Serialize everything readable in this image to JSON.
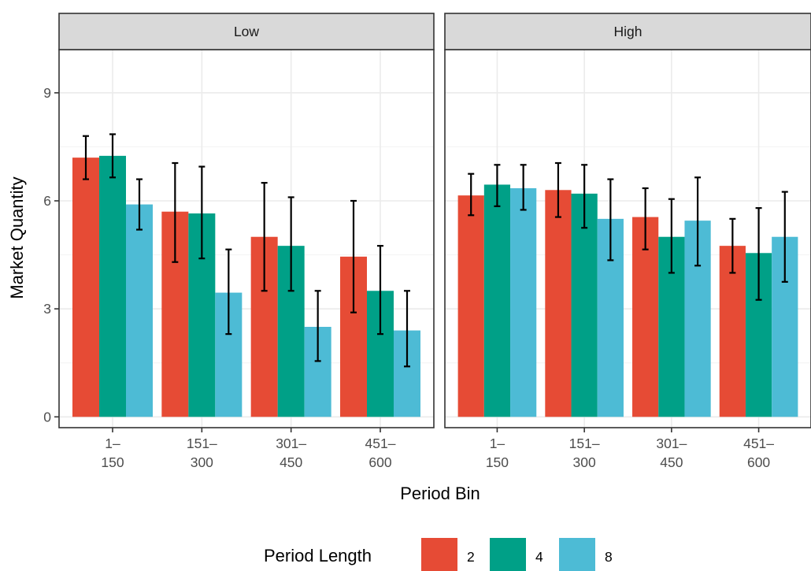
{
  "chart_data": {
    "type": "bar",
    "xlabel": "Period Bin",
    "ylabel": "Market Quantity",
    "ylim": [
      -0.3,
      10.2
    ],
    "yticks": [
      0,
      3,
      6,
      9
    ],
    "categories": [
      {
        "line1": "1–",
        "line2": "150"
      },
      {
        "line1": "151–",
        "line2": "300"
      },
      {
        "line1": "301–",
        "line2": "450"
      },
      {
        "line1": "451–",
        "line2": "600"
      }
    ],
    "grid": true,
    "legend": {
      "title": "Period Length",
      "position": "bottom",
      "items": [
        {
          "label": "2",
          "color": "#E64B35"
        },
        {
          "label": "4",
          "color": "#00A087"
        },
        {
          "label": "8",
          "color": "#4DBBD5"
        }
      ]
    },
    "panels": [
      {
        "label": "Low",
        "series": [
          {
            "name": "2",
            "values": [
              7.2,
              5.7,
              5.0,
              4.45
            ],
            "ci_low": [
              6.6,
              4.3,
              3.5,
              2.9
            ],
            "ci_high": [
              7.8,
              7.05,
              6.5,
              6.0
            ]
          },
          {
            "name": "4",
            "values": [
              7.25,
              5.65,
              4.75,
              3.5
            ],
            "ci_low": [
              6.65,
              4.4,
              3.5,
              2.3
            ],
            "ci_high": [
              7.85,
              6.95,
              6.1,
              4.75
            ]
          },
          {
            "name": "8",
            "values": [
              5.9,
              3.45,
              2.5,
              2.4
            ],
            "ci_low": [
              5.2,
              2.3,
              1.55,
              1.4
            ],
            "ci_high": [
              6.6,
              4.65,
              3.5,
              3.5
            ]
          }
        ]
      },
      {
        "label": "High",
        "series": [
          {
            "name": "2",
            "values": [
              6.15,
              6.3,
              5.55,
              4.75
            ],
            "ci_low": [
              5.6,
              5.55,
              4.65,
              4.0
            ],
            "ci_high": [
              6.75,
              7.05,
              6.35,
              5.5
            ]
          },
          {
            "name": "4",
            "values": [
              6.45,
              6.2,
              5.0,
              4.55
            ],
            "ci_low": [
              5.85,
              5.25,
              4.0,
              3.25
            ],
            "ci_high": [
              7.0,
              7.0,
              6.05,
              5.8
            ]
          },
          {
            "name": "8",
            "values": [
              6.35,
              5.5,
              5.45,
              5.0
            ],
            "ci_low": [
              5.75,
              4.35,
              4.2,
              3.75
            ],
            "ci_high": [
              7.0,
              6.6,
              6.65,
              6.25
            ]
          }
        ]
      }
    ]
  }
}
